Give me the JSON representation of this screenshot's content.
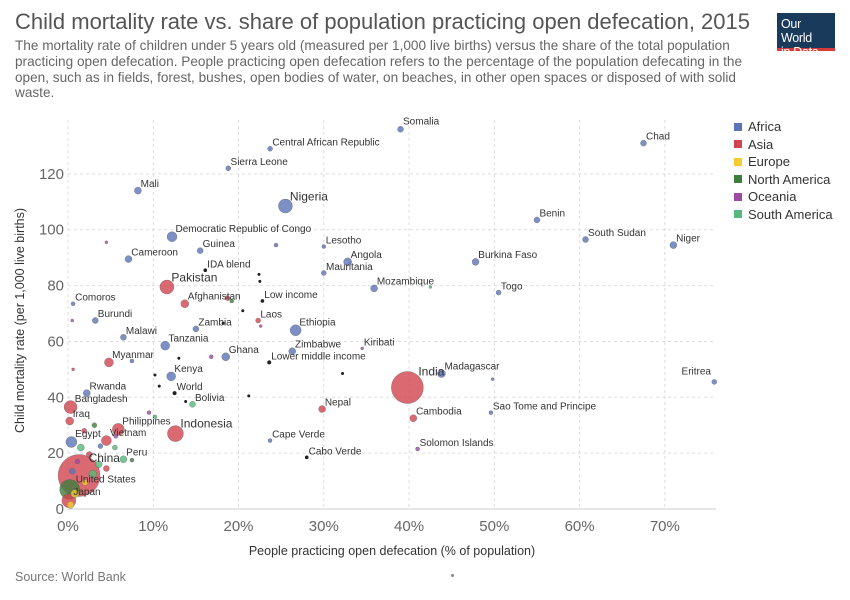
{
  "header": {
    "title": "Child mortality rate vs. share of population practicing open defecation, 2015",
    "subtitle": "The mortality rate of children under 5 years old (measured per 1,000 live births) versus the share of the total population practicing open defecation. People practicing open defecation refers to the percentage of the population defecating in the open, such as in fields, forest, bushes, open bodies of water, on beaches, in other open spaces or disposed of with solid waste.",
    "logo_line1": "Our World",
    "logo_line2": "in Data"
  },
  "footer": {
    "source": "Source: World Bank"
  },
  "colors": {
    "Africa": "#5b74b6",
    "Asia": "#d2434e",
    "Europe": "#f4cb30",
    "North America": "#3d7d3e",
    "Oceania": "#9d4aa4",
    "South America": "#55b97b",
    "aggregate": "#222222"
  },
  "legend": [
    {
      "label": "Africa",
      "color": "#5b74b6"
    },
    {
      "label": "Asia",
      "color": "#d2434e"
    },
    {
      "label": "Europe",
      "color": "#f4cb30"
    },
    {
      "label": "North America",
      "color": "#3d7d3e"
    },
    {
      "label": "Oceania",
      "color": "#9d4aa4"
    },
    {
      "label": "South America",
      "color": "#55b97b"
    }
  ],
  "chart_data": {
    "type": "scatter",
    "title": "Child mortality rate vs. share of population practicing open defecation, 2015",
    "xlabel": "People practicing open defecation (% of population)",
    "ylabel": "Child mortality rate (per 1,000 live births)",
    "xlim": [
      0,
      76
    ],
    "ylim": [
      0,
      135
    ],
    "x_ticks": [
      0,
      10,
      20,
      30,
      40,
      50,
      60,
      70
    ],
    "x_tick_labels": [
      "0%",
      "10%",
      "20%",
      "30%",
      "40%",
      "50%",
      "60%",
      "70%"
    ],
    "y_ticks": [
      0,
      20,
      40,
      60,
      80,
      100,
      120
    ],
    "y_tick_labels": [
      "0",
      "20",
      "40",
      "60",
      "80",
      "100",
      "120"
    ],
    "grid": "y-dashed",
    "legend_position": "right",
    "points": [
      {
        "label": "Somalia",
        "x": 39,
        "y": 136,
        "region": "Africa",
        "r": 3
      },
      {
        "label": "Chad",
        "x": 67.5,
        "y": 131,
        "region": "Africa",
        "r": 3
      },
      {
        "label": "Central African Republic",
        "x": 23.7,
        "y": 129,
        "region": "Africa",
        "r": 2.5
      },
      {
        "label": "Sierra Leone",
        "x": 18.8,
        "y": 122,
        "region": "Africa",
        "r": 2.5
      },
      {
        "label": "Mali",
        "x": 8.2,
        "y": 114,
        "region": "Africa",
        "r": 3.5
      },
      {
        "label": "Nigeria",
        "x": 25.5,
        "y": 108.5,
        "region": "Africa",
        "r": 7
      },
      {
        "label": "Benin",
        "x": 55,
        "y": 103.5,
        "region": "Africa",
        "r": 3
      },
      {
        "label": "Democratic Republic of Congo",
        "x": 12.2,
        "y": 97.5,
        "region": "Africa",
        "r": 5
      },
      {
        "label": "South Sudan",
        "x": 60.7,
        "y": 96.5,
        "region": "Africa",
        "r": 3
      },
      {
        "label": "Niger",
        "x": 71,
        "y": 94.5,
        "region": "Africa",
        "r": 3.5
      },
      {
        "label": "Lesotho",
        "x": 30,
        "y": 94,
        "region": "Africa",
        "r": 2
      },
      {
        "label": "Guinea",
        "x": 15.5,
        "y": 92.5,
        "region": "Africa",
        "r": 3
      },
      {
        "label": "Cameroon",
        "x": 7.1,
        "y": 89.5,
        "region": "Africa",
        "r": 3.5
      },
      {
        "label": "Angola",
        "x": 32.8,
        "y": 88.5,
        "region": "Africa",
        "r": 4
      },
      {
        "label": "Burkina Faso",
        "x": 47.8,
        "y": 88.5,
        "region": "Africa",
        "r": 3.5
      },
      {
        "label": "Mauritania",
        "x": 30,
        "y": 84.5,
        "region": "Africa",
        "r": 2.5
      },
      {
        "label": "IDA blend",
        "x": 16.1,
        "y": 85.5,
        "region": "aggregate",
        "r": 1.8
      },
      {
        "label": "Pakistan",
        "x": 11.6,
        "y": 79.5,
        "region": "Asia",
        "r": 7
      },
      {
        "label": "Mozambique",
        "x": 35.9,
        "y": 79,
        "region": "Africa",
        "r": 3.5
      },
      {
        "label": "Togo",
        "x": 50.5,
        "y": 77.5,
        "region": "Africa",
        "r": 2.5
      },
      {
        "label": "Afghanistan",
        "x": 13.7,
        "y": 73.5,
        "region": "Asia",
        "r": 4
      },
      {
        "label": "Low income",
        "x": 22.8,
        "y": 74.5,
        "region": "aggregate",
        "r": 1.8
      },
      {
        "label": "Comoros",
        "x": 0.6,
        "y": 73.5,
        "region": "Africa",
        "r": 2
      },
      {
        "label": "Laos",
        "x": 22.3,
        "y": 67.5,
        "region": "Asia",
        "r": 2.5
      },
      {
        "label": "Burundi",
        "x": 3.2,
        "y": 67.5,
        "region": "Africa",
        "r": 3
      },
      {
        "label": "Ethiopia",
        "x": 26.7,
        "y": 64,
        "region": "Africa",
        "r": 5.5
      },
      {
        "label": "Zambia",
        "x": 15,
        "y": 64.5,
        "region": "Africa",
        "r": 3
      },
      {
        "label": "Malawi",
        "x": 6.5,
        "y": 61.5,
        "region": "Africa",
        "r": 3
      },
      {
        "label": "Tanzania",
        "x": 11.4,
        "y": 58.5,
        "region": "Africa",
        "r": 4.5
      },
      {
        "label": "Kiribati",
        "x": 34.5,
        "y": 57.5,
        "region": "Oceania",
        "r": 1.5
      },
      {
        "label": "Zimbabwe",
        "x": 26.3,
        "y": 56.5,
        "region": "Africa",
        "r": 3.5
      },
      {
        "label": "Myanmar",
        "x": 4.8,
        "y": 52.5,
        "region": "Asia",
        "r": 4.5
      },
      {
        "label": "Ghana",
        "x": 18.5,
        "y": 54.5,
        "region": "Africa",
        "r": 4
      },
      {
        "label": "Lower middle income",
        "x": 23.6,
        "y": 52.5,
        "region": "aggregate",
        "r": 2
      },
      {
        "label": "India",
        "x": 39.8,
        "y": 43.5,
        "region": "Asia",
        "r": 16
      },
      {
        "label": "Kenya",
        "x": 12.1,
        "y": 47.5,
        "region": "Africa",
        "r": 4.5
      },
      {
        "label": "Madagascar",
        "x": 43.8,
        "y": 48.5,
        "region": "Africa",
        "r": 4
      },
      {
        "label": "Eritrea",
        "x": 75.8,
        "y": 45.5,
        "region": "Africa",
        "r": 2.5
      },
      {
        "label": "World",
        "x": 12.5,
        "y": 41.5,
        "region": "aggregate",
        "r": 2
      },
      {
        "label": "Rwanda",
        "x": 2.2,
        "y": 41.5,
        "region": "Africa",
        "r": 3.5
      },
      {
        "label": "Bolivia",
        "x": 14.6,
        "y": 37.5,
        "region": "South America",
        "r": 3
      },
      {
        "label": "Nepal",
        "x": 29.8,
        "y": 35.8,
        "region": "Asia",
        "r": 3.5
      },
      {
        "label": "Bangladesh",
        "x": 0.3,
        "y": 36.5,
        "region": "Asia",
        "r": 6.5
      },
      {
        "label": "Sao Tome and Principe",
        "x": 49.6,
        "y": 34.5,
        "region": "Africa",
        "r": 2
      },
      {
        "label": "Cambodia",
        "x": 40.5,
        "y": 32.5,
        "region": "Asia",
        "r": 3.5
      },
      {
        "label": "Iraq",
        "x": 0.2,
        "y": 31.5,
        "region": "Asia",
        "r": 4
      },
      {
        "label": "Philippines",
        "x": 5.9,
        "y": 28.5,
        "region": "Asia",
        "r": 6
      },
      {
        "label": "Indonesia",
        "x": 12.6,
        "y": 27,
        "region": "Asia",
        "r": 8
      },
      {
        "label": "Vietnam",
        "x": 4.5,
        "y": 24.5,
        "region": "Asia",
        "r": 5
      },
      {
        "label": "Cape Verde",
        "x": 23.7,
        "y": 24.5,
        "region": "Africa",
        "r": 2
      },
      {
        "label": "Egypt",
        "x": 0.4,
        "y": 24,
        "region": "Africa",
        "r": 5.5
      },
      {
        "label": "Solomon Islands",
        "x": 41,
        "y": 21.5,
        "region": "Oceania",
        "r": 2
      },
      {
        "label": "Peru",
        "x": 6.5,
        "y": 17.8,
        "region": "South America",
        "r": 3.5
      },
      {
        "label": "Cabo Verde",
        "x": 28,
        "y": 18.5,
        "region": "aggregate",
        "r": 1.8
      },
      {
        "label": "China",
        "x": 1.3,
        "y": 12,
        "region": "Asia",
        "r": 21
      },
      {
        "label": "United States",
        "x": 0.2,
        "y": 7,
        "region": "North America",
        "r": 10
      },
      {
        "label": "Japan",
        "x": 0.1,
        "y": 3,
        "region": "Asia",
        "r": 7
      },
      {
        "label": "",
        "x": 24.4,
        "y": 94.5,
        "region": "Africa",
        "r": 2
      },
      {
        "label": "",
        "x": 4.5,
        "y": 95.5,
        "region": "Oceania",
        "r": 1.5
      },
      {
        "label": "",
        "x": 22.5,
        "y": 81.5,
        "region": "aggregate",
        "r": 1.5
      },
      {
        "label": "",
        "x": 22.4,
        "y": 84,
        "region": "aggregate",
        "r": 1.5
      },
      {
        "label": "",
        "x": 42.5,
        "y": 79.5,
        "region": "South America",
        "r": 1.5
      },
      {
        "label": "",
        "x": 18.7,
        "y": 75.5,
        "region": "Asia",
        "r": 2.5
      },
      {
        "label": "",
        "x": 19.2,
        "y": 74.5,
        "region": "North America",
        "r": 2
      },
      {
        "label": "",
        "x": 20.5,
        "y": 71,
        "region": "aggregate",
        "r": 1.5
      },
      {
        "label": "",
        "x": 18.2,
        "y": 66.5,
        "region": "aggregate",
        "r": 1.5
      },
      {
        "label": "",
        "x": 22.6,
        "y": 65.5,
        "region": "Oceania",
        "r": 1.5
      },
      {
        "label": "",
        "x": 0.5,
        "y": 67.5,
        "region": "Oceania",
        "r": 1.5
      },
      {
        "label": "",
        "x": 7.5,
        "y": 53,
        "region": "Africa",
        "r": 2
      },
      {
        "label": "",
        "x": 13,
        "y": 54,
        "region": "aggregate",
        "r": 1.5
      },
      {
        "label": "",
        "x": 16.8,
        "y": 54.5,
        "region": "Oceania",
        "r": 2
      },
      {
        "label": "",
        "x": 32.2,
        "y": 48.5,
        "region": "aggregate",
        "r": 1.5
      },
      {
        "label": "",
        "x": 49.8,
        "y": 46.5,
        "region": "Africa",
        "r": 1.5
      },
      {
        "label": "",
        "x": 10.2,
        "y": 48,
        "region": "aggregate",
        "r": 1.5
      },
      {
        "label": "",
        "x": 21.2,
        "y": 40.5,
        "region": "aggregate",
        "r": 1.5
      },
      {
        "label": "",
        "x": 9.5,
        "y": 34.5,
        "region": "Oceania",
        "r": 2
      },
      {
        "label": "",
        "x": 10.2,
        "y": 33,
        "region": "South America",
        "r": 2
      },
      {
        "label": "",
        "x": 13.8,
        "y": 38.5,
        "region": "aggregate",
        "r": 1.5
      },
      {
        "label": "",
        "x": 3.1,
        "y": 30,
        "region": "North America",
        "r": 2.5
      },
      {
        "label": "",
        "x": 1.5,
        "y": 22,
        "region": "South America",
        "r": 3.5
      },
      {
        "label": "",
        "x": 2.5,
        "y": 19.5,
        "region": "Asia",
        "r": 3
      },
      {
        "label": "",
        "x": 3.6,
        "y": 16,
        "region": "South America",
        "r": 3.5
      },
      {
        "label": "",
        "x": 4.5,
        "y": 14.5,
        "region": "Asia",
        "r": 3
      },
      {
        "label": "",
        "x": 5.5,
        "y": 22,
        "region": "South America",
        "r": 2.5
      },
      {
        "label": "",
        "x": 7.5,
        "y": 17.5,
        "region": "North America",
        "r": 2
      },
      {
        "label": "",
        "x": 2,
        "y": 9.5,
        "region": "Europe",
        "r": 3
      },
      {
        "label": "",
        "x": 0.8,
        "y": 5.5,
        "region": "Europe",
        "r": 4
      },
      {
        "label": "",
        "x": 0.3,
        "y": 1.5,
        "region": "Europe",
        "r": 3.5
      },
      {
        "label": "",
        "x": 1.1,
        "y": 17,
        "region": "Oceania",
        "r": 2.5
      },
      {
        "label": "",
        "x": 2.9,
        "y": 12.5,
        "region": "South America",
        "r": 4
      },
      {
        "label": "",
        "x": 0.5,
        "y": 13.5,
        "region": "Africa",
        "r": 3
      },
      {
        "label": "",
        "x": 0.6,
        "y": 50,
        "region": "Asia",
        "r": 1.5
      },
      {
        "label": "",
        "x": 10.7,
        "y": 44,
        "region": "aggregate",
        "r": 1.5
      },
      {
        "label": "",
        "x": 3.8,
        "y": 22.5,
        "region": "Africa",
        "r": 2.5
      },
      {
        "label": "",
        "x": 5.6,
        "y": 26,
        "region": "Oceania",
        "r": 2
      },
      {
        "label": "",
        "x": 1.9,
        "y": 28,
        "region": "Asia",
        "r": 2.5
      }
    ]
  }
}
